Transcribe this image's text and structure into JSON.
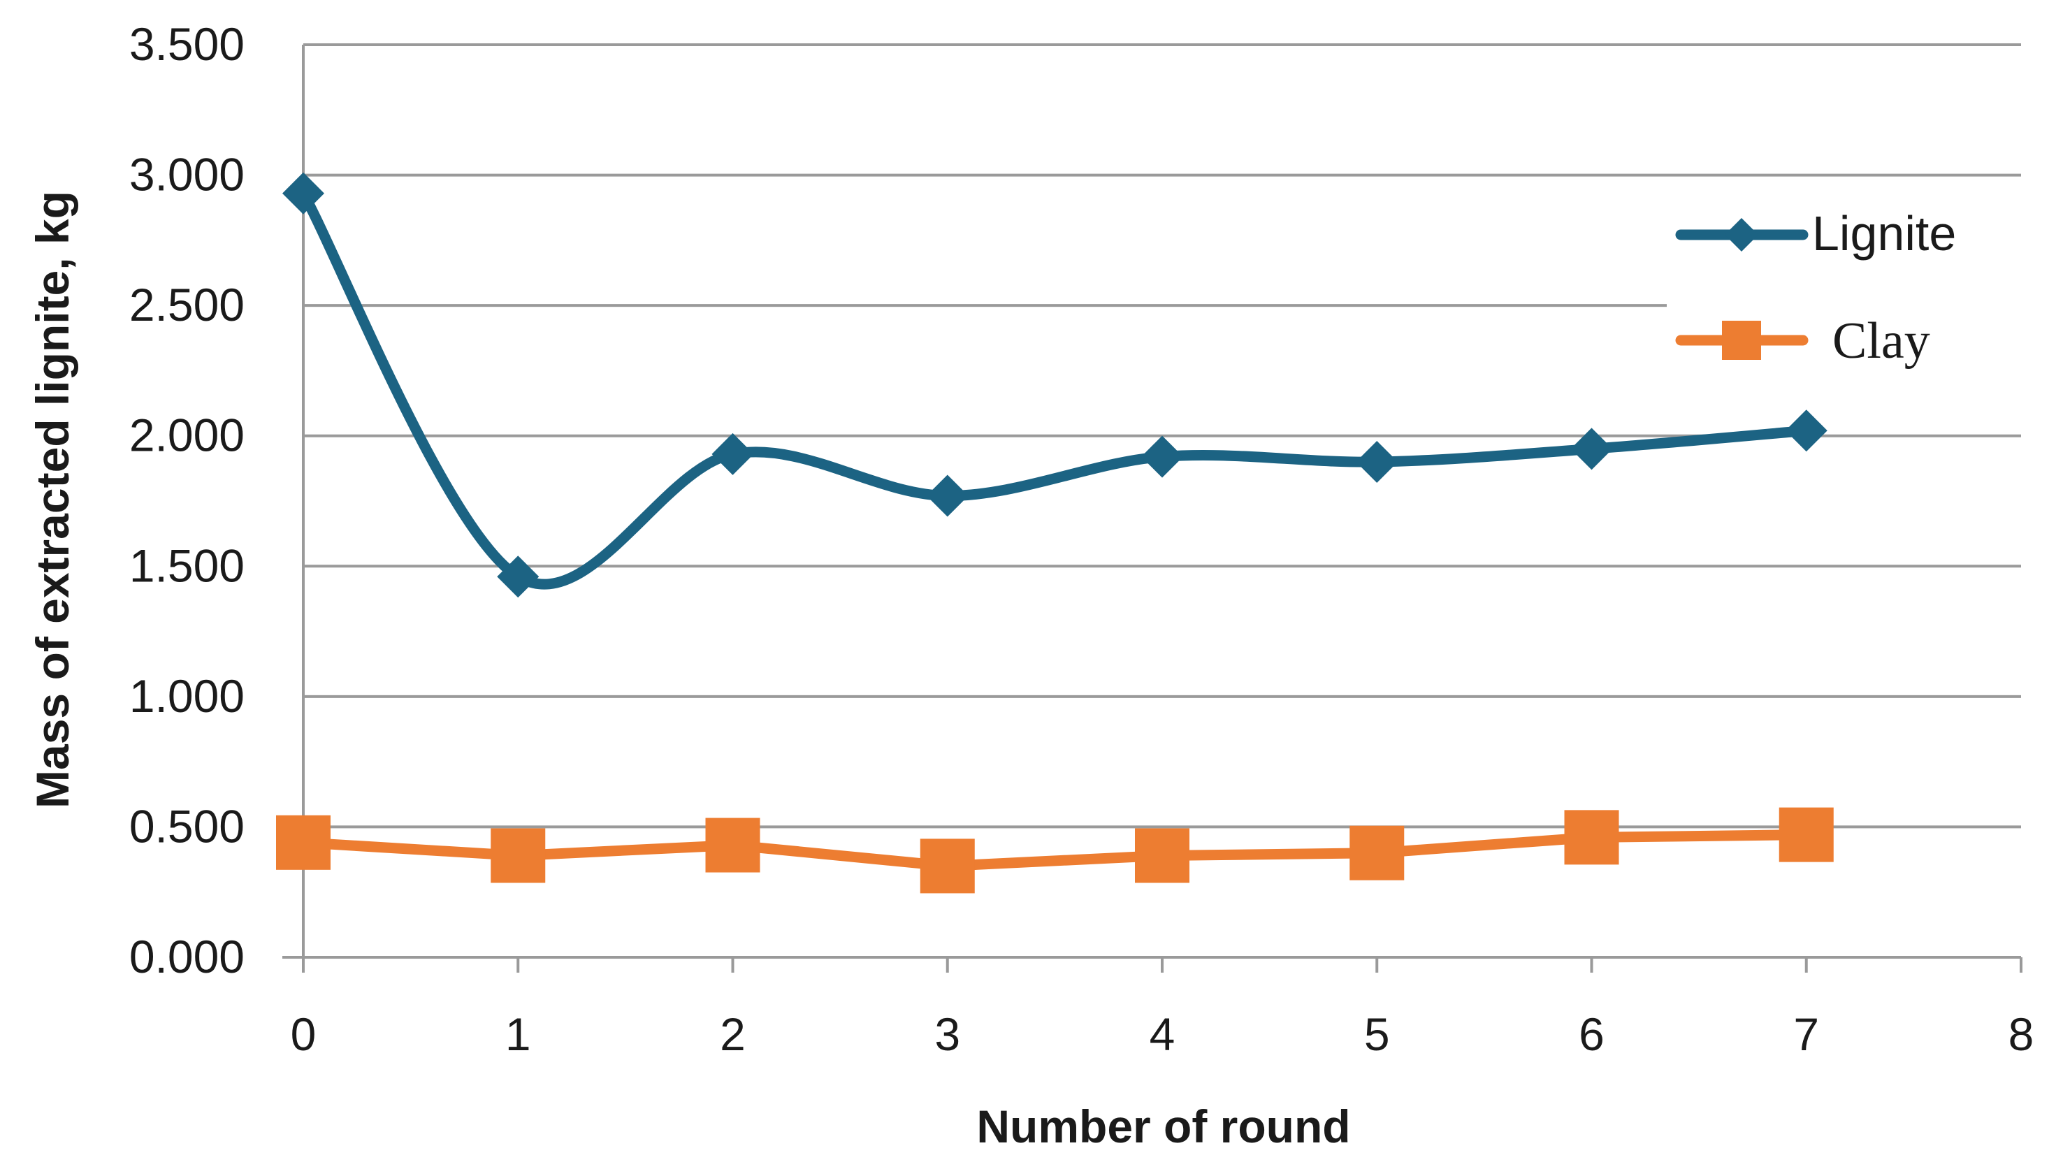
{
  "chart_data": {
    "type": "line",
    "title": "",
    "xlabel": "Number of round",
    "ylabel": "Mass of extracted lignite, kg",
    "x": [
      0,
      1,
      2,
      3,
      4,
      5,
      6,
      7
    ],
    "xlim": [
      0,
      8
    ],
    "ylim": [
      0,
      3.5
    ],
    "x_ticks": [
      "0",
      "1",
      "2",
      "3",
      "4",
      "5",
      "6",
      "7",
      "8"
    ],
    "y_ticks": [
      "0.000",
      "0.500",
      "1.000",
      "1.500",
      "2.000",
      "2.500",
      "3.000",
      "3.500"
    ],
    "grid": "horizontal",
    "legend_position": "top-right",
    "series": [
      {
        "name": "Lignite",
        "values": [
          2.93,
          1.46,
          1.93,
          1.77,
          1.92,
          1.9,
          1.95,
          2.02
        ],
        "color": "#1c6383",
        "marker": "diamond",
        "smooth": true
      },
      {
        "name": "Clay",
        "values": [
          0.44,
          0.39,
          0.43,
          0.35,
          0.39,
          0.4,
          0.46,
          0.47
        ],
        "color": "#ed7d31",
        "marker": "square",
        "smooth": false
      }
    ]
  }
}
